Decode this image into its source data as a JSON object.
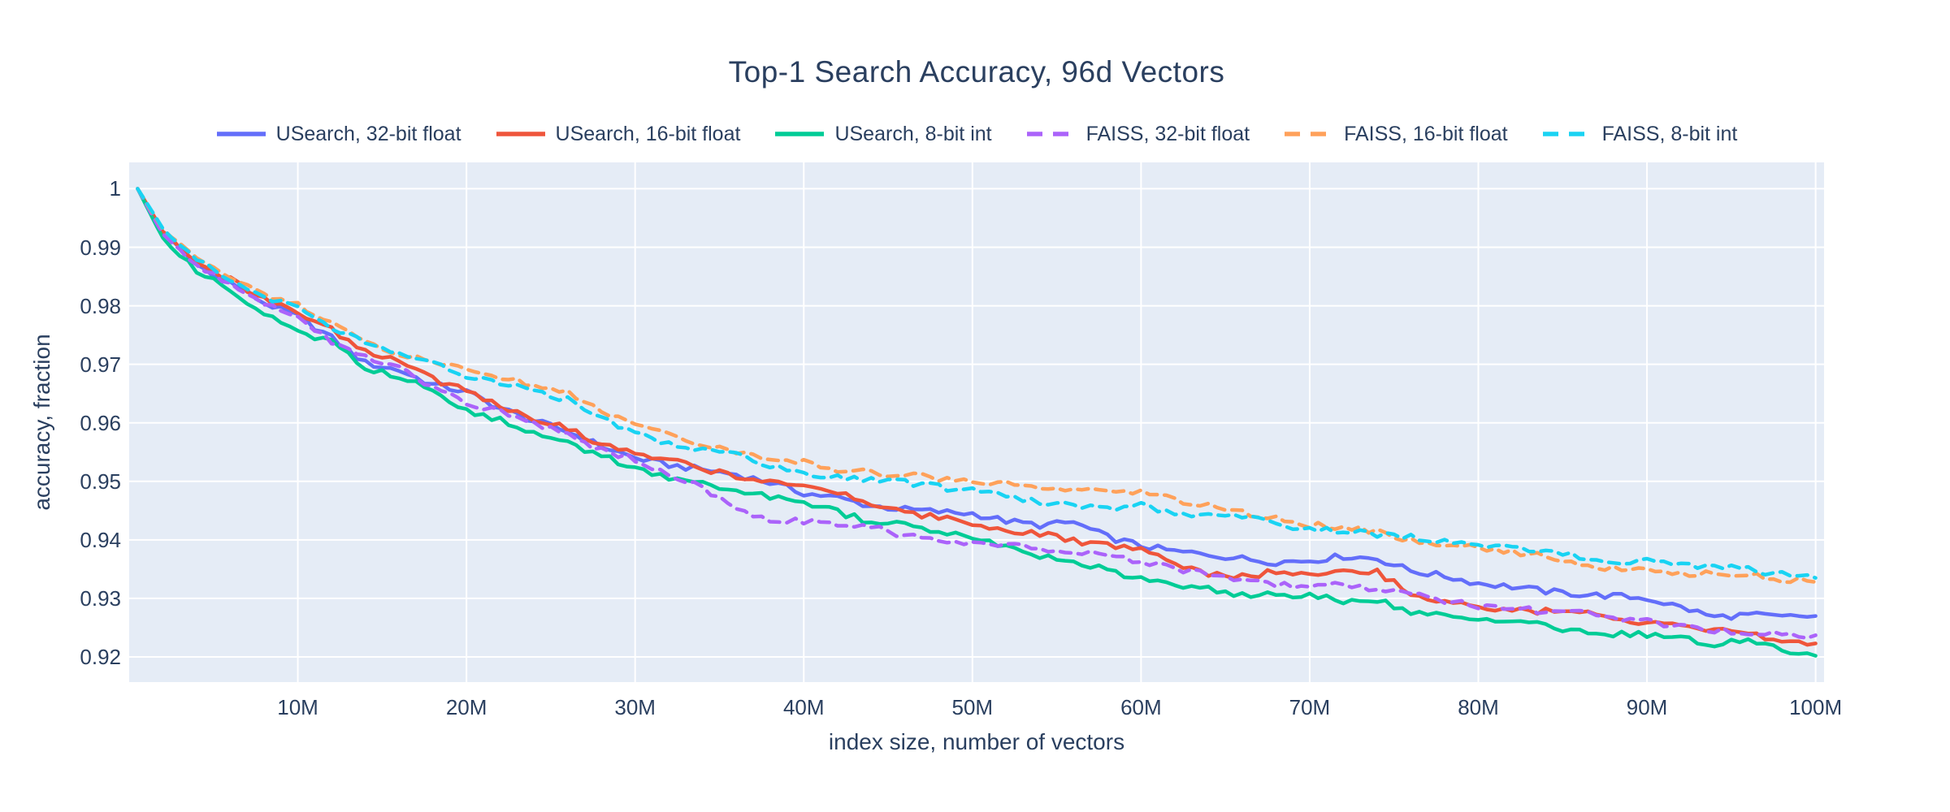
{
  "figure": {
    "title": "Top-1 Search Accuracy, 96d Vectors"
  },
  "colors": {
    "background": "#ffffff",
    "plot_background": "#e5ecf6",
    "grid": "#ffffff",
    "text": "#2a3f5f"
  },
  "chart_data": {
    "type": "line",
    "title": "Top-1 Search Accuracy, 96d Vectors",
    "xlabel": "index size, number of vectors",
    "ylabel": "accuracy, fraction",
    "x_unit": "millions of vectors",
    "xlim": [
      0,
      100.5
    ],
    "ylim": [
      0.9157,
      1.0045
    ],
    "grid": true,
    "legend_position": "top-center",
    "xticks": {
      "values": [
        10,
        20,
        30,
        40,
        50,
        60,
        70,
        80,
        90,
        100
      ],
      "labels": [
        "10M",
        "20M",
        "30M",
        "40M",
        "50M",
        "60M",
        "70M",
        "80M",
        "90M",
        "100M"
      ]
    },
    "yticks": {
      "values": [
        1,
        0.99,
        0.98,
        0.97,
        0.96,
        0.95,
        0.94,
        0.93,
        0.92
      ],
      "labels": [
        "1",
        "0.99",
        "0.98",
        "0.97",
        "0.96",
        "0.95",
        "0.94",
        "0.93",
        "0.92"
      ]
    },
    "x": [
      0.5,
      2,
      4,
      6,
      8,
      10,
      12,
      14,
      16,
      18,
      20,
      22,
      24,
      26,
      28,
      30,
      32,
      34,
      36,
      38,
      40,
      42,
      44,
      46,
      48,
      50,
      52,
      54,
      56,
      58,
      60,
      62,
      64,
      66,
      68,
      70,
      72,
      74,
      76,
      78,
      80,
      82,
      84,
      86,
      88,
      90,
      92,
      94,
      96,
      98,
      100
    ],
    "series": [
      {
        "name": "USearch, 32-bit float",
        "color": "#636efa",
        "dash": "solid",
        "values": [
          1.0,
          0.9925,
          0.987,
          0.984,
          0.9805,
          0.9782,
          0.9745,
          0.9702,
          0.969,
          0.9665,
          0.9653,
          0.9625,
          0.9603,
          0.9585,
          0.956,
          0.954,
          0.9528,
          0.952,
          0.9512,
          0.9498,
          0.948,
          0.9472,
          0.9458,
          0.9452,
          0.9448,
          0.9445,
          0.9432,
          0.9425,
          0.943,
          0.9405,
          0.939,
          0.938,
          0.9375,
          0.9368,
          0.9362,
          0.9365,
          0.9372,
          0.9368,
          0.9347,
          0.9338,
          0.9326,
          0.932,
          0.9312,
          0.9307,
          0.9304,
          0.93,
          0.9285,
          0.9268,
          0.9272,
          0.9268,
          0.927
        ]
      },
      {
        "name": "USearch, 16-bit float",
        "color": "#ef553b",
        "dash": "solid",
        "values": [
          1.0,
          0.9928,
          0.9875,
          0.9845,
          0.981,
          0.9787,
          0.9758,
          0.972,
          0.9705,
          0.9675,
          0.9658,
          0.9628,
          0.9605,
          0.959,
          0.9565,
          0.9545,
          0.9535,
          0.9522,
          0.951,
          0.9502,
          0.9493,
          0.9482,
          0.9462,
          0.9448,
          0.9438,
          0.9428,
          0.9418,
          0.941,
          0.9398,
          0.939,
          0.9385,
          0.9358,
          0.934,
          0.9338,
          0.9345,
          0.934,
          0.9352,
          0.9345,
          0.931,
          0.9295,
          0.9284,
          0.928,
          0.9278,
          0.9275,
          0.9265,
          0.9258,
          0.925,
          0.9245,
          0.9238,
          0.9228,
          0.9223
        ]
      },
      {
        "name": "USearch, 8-bit int",
        "color": "#00cc96",
        "dash": "solid",
        "values": [
          1.0,
          0.9915,
          0.986,
          0.9825,
          0.979,
          0.9752,
          0.9738,
          0.9692,
          0.968,
          0.9655,
          0.9622,
          0.9605,
          0.958,
          0.9565,
          0.9545,
          0.9522,
          0.9508,
          0.9495,
          0.948,
          0.9475,
          0.946,
          0.9448,
          0.943,
          0.9425,
          0.9412,
          0.9405,
          0.9388,
          0.9372,
          0.9365,
          0.9348,
          0.9335,
          0.9325,
          0.9318,
          0.9305,
          0.9308,
          0.9305,
          0.9295,
          0.9298,
          0.9277,
          0.927,
          0.9265,
          0.9262,
          0.9252,
          0.9242,
          0.924,
          0.9237,
          0.9232,
          0.9222,
          0.9228,
          0.9212,
          0.9202
        ]
      },
      {
        "name": "FAISS, 32-bit float",
        "color": "#ab63fa",
        "dash": "dash",
        "values": [
          1.0,
          0.9922,
          0.9868,
          0.9838,
          0.9805,
          0.9778,
          0.974,
          0.971,
          0.9693,
          0.966,
          0.9632,
          0.9618,
          0.9598,
          0.9585,
          0.9552,
          0.9538,
          0.9512,
          0.949,
          0.9455,
          0.9435,
          0.9433,
          0.9425,
          0.9422,
          0.9408,
          0.9402,
          0.9396,
          0.939,
          0.9386,
          0.9382,
          0.9372,
          0.9363,
          0.935,
          0.934,
          0.9332,
          0.9325,
          0.932,
          0.9322,
          0.9318,
          0.9307,
          0.9295,
          0.9288,
          0.9282,
          0.9278,
          0.9275,
          0.9268,
          0.926,
          0.9252,
          0.9245,
          0.9242,
          0.9238,
          0.9237
        ]
      },
      {
        "name": "FAISS, 16-bit float",
        "color": "#ffa15a",
        "dash": "dash",
        "values": [
          1.0,
          0.993,
          0.988,
          0.985,
          0.9818,
          0.98,
          0.9768,
          0.9742,
          0.9718,
          0.9705,
          0.969,
          0.968,
          0.9662,
          0.9652,
          0.962,
          0.9598,
          0.958,
          0.9565,
          0.955,
          0.954,
          0.9533,
          0.952,
          0.9515,
          0.9512,
          0.9505,
          0.9498,
          0.9495,
          0.949,
          0.9487,
          0.9482,
          0.9481,
          0.9468,
          0.9458,
          0.9448,
          0.9435,
          0.9426,
          0.9422,
          0.9415,
          0.94,
          0.9392,
          0.9386,
          0.9378,
          0.9372,
          0.9356,
          0.935,
          0.9349,
          0.9342,
          0.9345,
          0.934,
          0.9332,
          0.9328
        ]
      },
      {
        "name": "FAISS, 8-bit int",
        "color": "#19d3f3",
        "dash": "dash",
        "values": [
          1.0,
          0.9932,
          0.9878,
          0.9848,
          0.9815,
          0.9797,
          0.9765,
          0.9738,
          0.9722,
          0.9702,
          0.9678,
          0.9668,
          0.9652,
          0.964,
          0.961,
          0.9582,
          0.9565,
          0.9555,
          0.9545,
          0.9525,
          0.9516,
          0.9508,
          0.9502,
          0.9498,
          0.949,
          0.9484,
          0.9475,
          0.9462,
          0.946,
          0.9455,
          0.9458,
          0.9448,
          0.9442,
          0.9438,
          0.9428,
          0.9419,
          0.9415,
          0.941,
          0.9405,
          0.9398,
          0.939,
          0.9388,
          0.9382,
          0.937,
          0.9365,
          0.9363,
          0.9358,
          0.9352,
          0.935,
          0.934,
          0.9335
        ]
      }
    ]
  }
}
